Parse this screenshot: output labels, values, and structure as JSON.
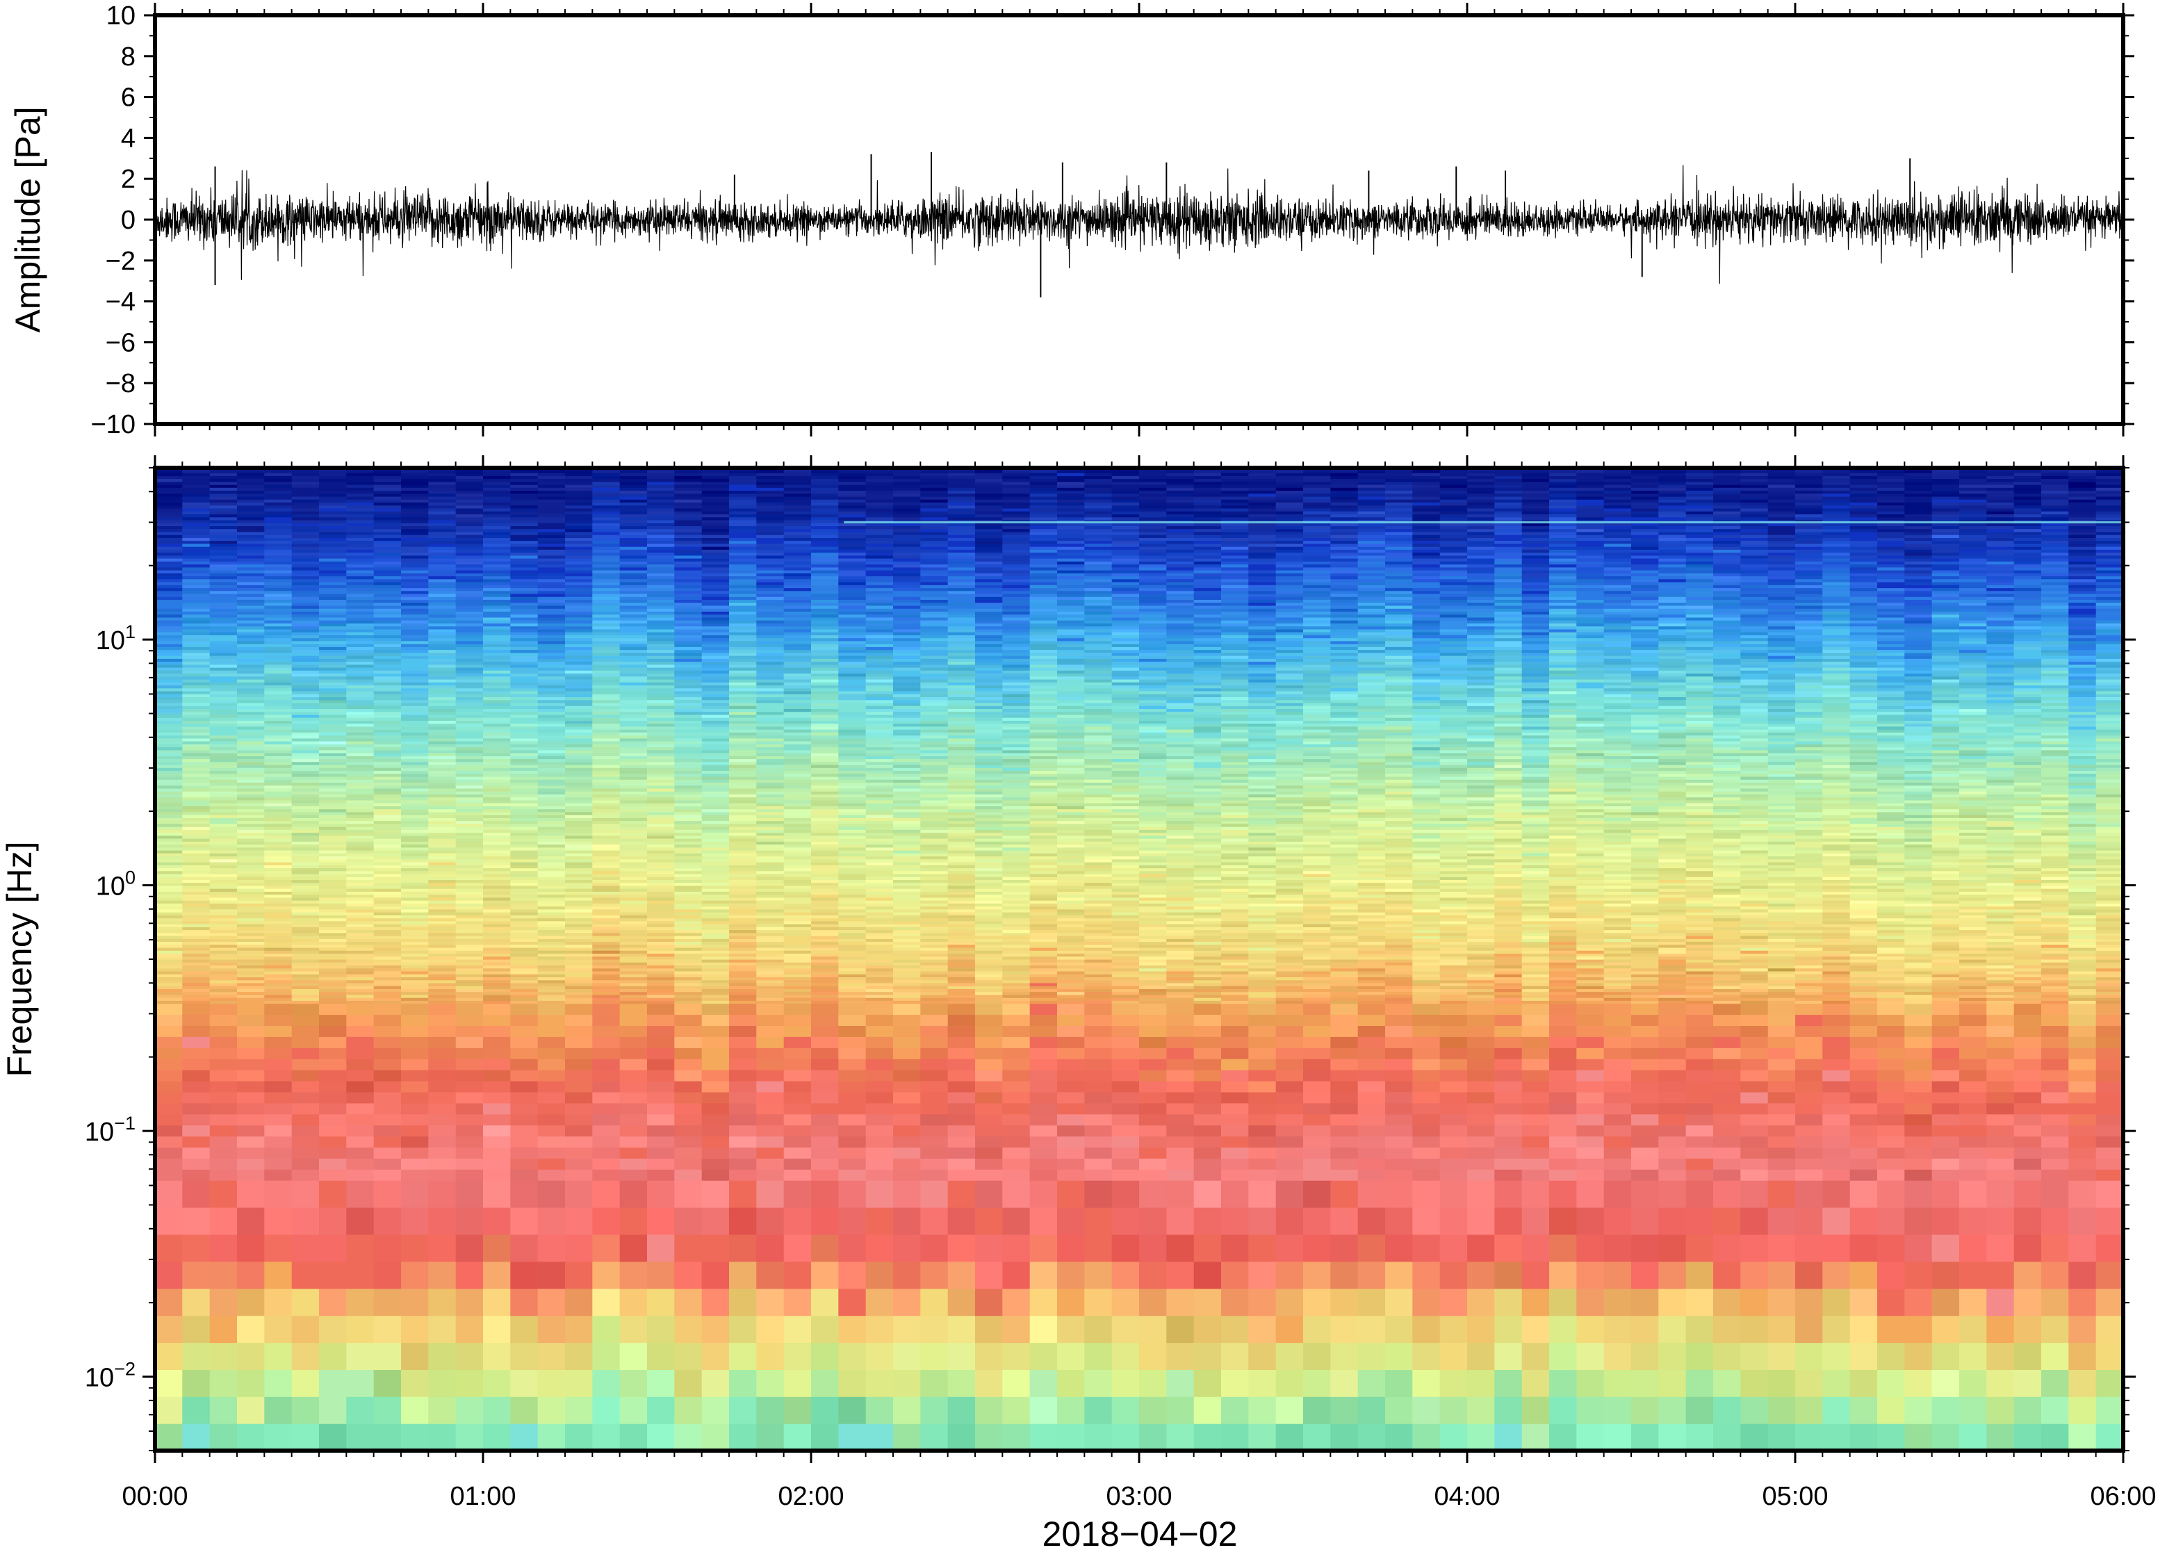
{
  "chart_data": [
    {
      "type": "line",
      "description_kind": "infrasound waveform",
      "ylabel": "Amplitude [Pa]",
      "ylim": [
        -10,
        10
      ],
      "yticks": [
        -10,
        -8,
        -6,
        -4,
        -2,
        0,
        2,
        4,
        6,
        8,
        10
      ],
      "ytick_labels": [
        "−10",
        "−8",
        "−6",
        "−4",
        "−2",
        "0",
        "2",
        "4",
        "6",
        "8",
        "10"
      ],
      "x_range": [
        "00:00",
        "06:00"
      ],
      "baseline_noise_pa": 0.9,
      "peaks": [
        {
          "time": "00:11",
          "value": -3.2
        },
        {
          "time": "00:11",
          "value": 2.6
        },
        {
          "time": "01:46",
          "value": 2.2
        },
        {
          "time": "02:11",
          "value": 3.2
        },
        {
          "time": "02:22",
          "value": 3.3
        },
        {
          "time": "02:42",
          "value": -3.8
        },
        {
          "time": "02:46",
          "value": 2.8
        },
        {
          "time": "03:05",
          "value": 2.8
        },
        {
          "time": "03:42",
          "value": 2.4
        },
        {
          "time": "03:58",
          "value": 2.6
        },
        {
          "time": "04:07",
          "value": 2.4
        },
        {
          "time": "04:32",
          "value": -2.8
        },
        {
          "time": "05:21",
          "value": 3.0
        }
      ]
    },
    {
      "type": "heatmap",
      "description_kind": "spectrogram",
      "ylabel": "Frequency [Hz]",
      "yscale": "log",
      "ylim": [
        0.005,
        50
      ],
      "yticks": [
        {
          "mantissa": "10",
          "exponent": "−2"
        },
        {
          "mantissa": "10",
          "exponent": "−1"
        },
        {
          "mantissa": "10",
          "exponent": "0"
        },
        {
          "mantissa": "10",
          "exponent": "1"
        }
      ],
      "ytick_values": [
        0.01,
        0.1,
        1,
        10
      ],
      "x_range": [
        "00:00",
        "06:00"
      ],
      "colormap": [
        "#0a1a8c",
        "#1133c4",
        "#2a7be6",
        "#4fc3f0",
        "#7de3d8",
        "#b4f0b0",
        "#e6f296",
        "#f4da78",
        "#f5a95a",
        "#f06a5a",
        "#f58a8a"
      ],
      "notable_features": [
        {
          "frequency_hz": 30,
          "description_text": "narrow line"
        }
      ],
      "color_bands": [
        {
          "freq_hz": 40,
          "color": "#0a1a8c"
        },
        {
          "freq_hz": 20,
          "color": "#1d4fd6"
        },
        {
          "freq_hz": 10,
          "color": "#3aa8ee"
        },
        {
          "freq_hz": 5,
          "color": "#7de3d8"
        },
        {
          "freq_hz": 2,
          "color": "#c8f0a0"
        },
        {
          "freq_hz": 1,
          "color": "#e9ef8e"
        },
        {
          "freq_hz": 0.5,
          "color": "#f4d478"
        },
        {
          "freq_hz": 0.3,
          "color": "#f5a05a"
        },
        {
          "freq_hz": 0.15,
          "color": "#f06a5a"
        },
        {
          "freq_hz": 0.07,
          "color": "#f38080"
        },
        {
          "freq_hz": 0.03,
          "color": "#f0605a"
        },
        {
          "freq_hz": 0.018,
          "color": "#f6c870"
        },
        {
          "freq_hz": 0.01,
          "color": "#d8f08a"
        },
        {
          "freq_hz": 0.006,
          "color": "#7fe6b8"
        }
      ]
    }
  ],
  "x_axis": {
    "tick_labels": [
      "00:00",
      "01:00",
      "02:00",
      "03:00",
      "04:00",
      "05:00",
      "06:00"
    ],
    "date_label": "2018−04−02"
  }
}
